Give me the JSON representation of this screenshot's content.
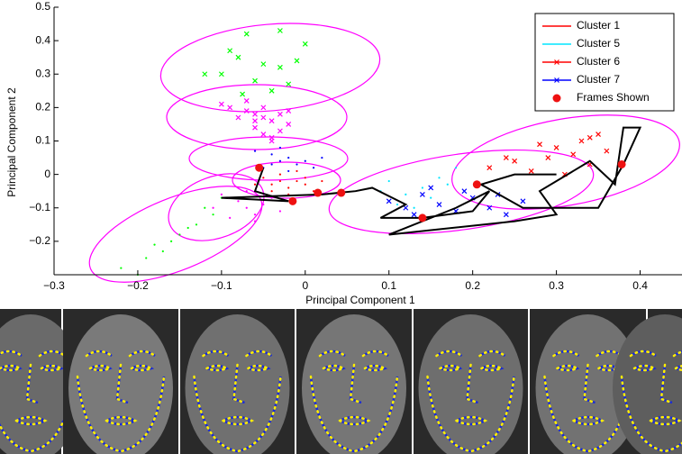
{
  "chart_data": {
    "type": "scatter",
    "xlabel": "Principal Component 1",
    "ylabel": "Principal Component 2",
    "xlim": [
      -0.3,
      0.45
    ],
    "ylim": [
      -0.3,
      0.5
    ],
    "xticks": [
      {
        "value": -0.3,
        "label": "−0.3"
      },
      {
        "value": -0.2,
        "label": "−0.2"
      },
      {
        "value": -0.1,
        "label": "−0.1"
      },
      0,
      0.1,
      0.2,
      0.3,
      0.4
    ],
    "yticks": [
      {
        "value": -0.2,
        "label": "−0.2"
      },
      {
        "value": -0.1,
        "label": "−0.1"
      },
      0,
      0.1,
      0.2,
      0.3,
      0.4,
      0.5
    ],
    "legend": "top-right",
    "series": [
      {
        "color": "#00ff00",
        "marker": "x",
        "x": [
          -0.07,
          -0.03,
          0.0,
          -0.08,
          -0.05,
          -0.03,
          -0.1,
          -0.06,
          -0.02,
          -0.04,
          -0.12,
          -0.075,
          -0.09,
          -0.01
        ],
        "values": [
          0.42,
          0.43,
          0.39,
          0.35,
          0.33,
          0.32,
          0.3,
          0.28,
          0.27,
          0.25,
          0.3,
          0.24,
          0.37,
          0.34
        ]
      },
      {
        "color": "#00ff00",
        "marker": "dot",
        "x": [
          -0.22,
          -0.2,
          -0.18,
          -0.16,
          -0.14,
          -0.12,
          -0.17,
          -0.13,
          -0.1,
          -0.19,
          -0.15,
          -0.11
        ],
        "values": [
          -0.28,
          -0.3,
          -0.21,
          -0.2,
          -0.16,
          -0.1,
          -0.23,
          -0.15,
          -0.07,
          -0.25,
          -0.18,
          -0.12
        ]
      },
      {
        "color": "#ff00ff",
        "marker": "x",
        "x": [
          -0.09,
          -0.07,
          -0.06,
          -0.05,
          -0.04,
          -0.03,
          -0.02,
          -0.06,
          -0.05,
          -0.04,
          -0.08,
          -0.03,
          -0.07,
          -0.05,
          -0.1,
          -0.02,
          -0.04,
          -0.06
        ],
        "values": [
          0.2,
          0.19,
          0.18,
          0.17,
          0.16,
          0.18,
          0.15,
          0.14,
          0.12,
          0.11,
          0.17,
          0.13,
          0.22,
          0.2,
          0.21,
          0.19,
          0.1,
          0.16
        ]
      },
      {
        "color": "#ff00ff",
        "marker": "dot",
        "x": [
          -0.1,
          -0.08,
          -0.07,
          -0.06,
          -0.05,
          -0.09,
          -0.04,
          -0.07,
          -0.11,
          -0.03,
          -0.06,
          -0.08
        ],
        "values": [
          -0.06,
          -0.08,
          -0.1,
          -0.12,
          -0.09,
          -0.13,
          -0.07,
          -0.05,
          -0.1,
          -0.11,
          -0.14,
          -0.04
        ]
      },
      {
        "color": "#0000ff",
        "marker": "dot",
        "x": [
          -0.06,
          -0.04,
          -0.03,
          -0.02,
          -0.01,
          0.0,
          -0.05,
          -0.03,
          0.01,
          -0.02,
          0.02,
          -0.04
        ],
        "values": [
          0.07,
          0.06,
          0.04,
          0.05,
          0.03,
          0.04,
          0.02,
          0.08,
          0.02,
          0.01,
          0.05,
          0.03
        ]
      },
      {
        "name": "Cluster 1",
        "color": "#ff0000",
        "marker": "dot",
        "legend_line": true,
        "x": [
          -0.05,
          -0.04,
          -0.03,
          -0.02,
          -0.01,
          0.0,
          0.01,
          -0.03,
          -0.02,
          0.0,
          -0.04,
          0.02,
          -0.01,
          -0.06
        ],
        "values": [
          -0.01,
          -0.03,
          -0.02,
          -0.04,
          -0.02,
          -0.03,
          -0.05,
          0.0,
          -0.06,
          -0.01,
          -0.05,
          -0.02,
          0.01,
          -0.03
        ]
      },
      {
        "name": "Cluster 5",
        "color": "#00e5ff",
        "marker": "dot",
        "legend_line": true,
        "x": [
          0.1,
          0.12,
          0.14,
          0.16,
          0.18,
          0.11,
          0.13,
          0.15,
          0.17,
          0.09
        ],
        "values": [
          -0.02,
          -0.06,
          -0.04,
          -0.01,
          0.02,
          -0.09,
          -0.1,
          -0.07,
          -0.03,
          -0.05
        ]
      },
      {
        "name": "Cluster 6",
        "color": "#ff0000",
        "marker": "x",
        "legend_line": true,
        "x": [
          0.22,
          0.25,
          0.27,
          0.29,
          0.3,
          0.32,
          0.33,
          0.34,
          0.35,
          0.36,
          0.28,
          0.31,
          0.24,
          0.34
        ],
        "values": [
          0.02,
          0.04,
          0.01,
          0.05,
          0.08,
          0.06,
          0.1,
          0.03,
          0.12,
          0.07,
          0.09,
          0.0,
          0.05,
          0.11
        ]
      },
      {
        "name": "Cluster 7",
        "color": "#0000ff",
        "marker": "x",
        "legend_line": true,
        "x": [
          0.1,
          0.12,
          0.14,
          0.16,
          0.18,
          0.2,
          0.22,
          0.24,
          0.26,
          0.15,
          0.19,
          0.13,
          0.23
        ],
        "values": [
          -0.08,
          -0.1,
          -0.06,
          -0.09,
          -0.11,
          -0.07,
          -0.1,
          -0.12,
          -0.08,
          -0.04,
          -0.05,
          -0.12,
          -0.06
        ]
      },
      {
        "color": "#000000",
        "marker": "line",
        "x": [
          -0.05,
          -0.06,
          -0.02,
          -0.1,
          0.02,
          0.06,
          0.08,
          0.12,
          0.09,
          0.14,
          0.2,
          0.22,
          0.18,
          0.1,
          0.25,
          0.3,
          0.28,
          0.34,
          0.37,
          0.38,
          0.4,
          0.38,
          0.35,
          0.26,
          0.21,
          0.25,
          0.3
        ],
        "values": [
          0.02,
          -0.05,
          -0.08,
          -0.07,
          -0.06,
          -0.05,
          -0.04,
          -0.09,
          -0.13,
          -0.13,
          -0.11,
          -0.05,
          -0.1,
          -0.18,
          -0.14,
          -0.12,
          -0.05,
          0.04,
          -0.03,
          0.14,
          0.14,
          0.03,
          -0.1,
          -0.1,
          -0.03,
          0.0,
          0.0
        ]
      },
      {
        "name": "Frames Shown",
        "color": "#ee1111",
        "marker": "circle",
        "x": [
          -0.055,
          -0.015,
          0.015,
          0.043,
          0.14,
          0.205,
          0.378
        ],
        "values": [
          0.02,
          -0.08,
          -0.055,
          -0.055,
          -0.13,
          -0.03,
          0.03
        ]
      }
    ]
  }
}
